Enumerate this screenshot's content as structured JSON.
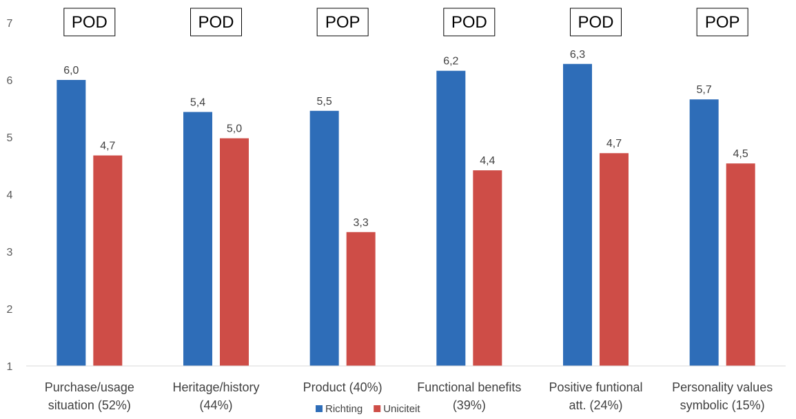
{
  "chart_data": {
    "type": "bar",
    "categories": [
      [
        "Purchase/usage",
        "situation (52%)"
      ],
      [
        "Heritage/history",
        "(44%)"
      ],
      [
        "Product (40%)"
      ],
      [
        "Functional benefits",
        "(39%)"
      ],
      [
        "Positive funtional",
        "att. (24%)"
      ],
      [
        "Personality values",
        "symbolic (15%)"
      ]
    ],
    "tags": [
      "POD",
      "POD",
      "POP",
      "POD",
      "POD",
      "POP"
    ],
    "series": [
      {
        "name": "Richting",
        "values": [
          6.0,
          5.44,
          5.46,
          6.16,
          6.28,
          5.66
        ],
        "labels": [
          "6,0",
          "5,4",
          "5,5",
          "6,2",
          "6,3",
          "5,7"
        ],
        "color": "#2E6DB8"
      },
      {
        "name": "Uniciteit",
        "values": [
          4.68,
          4.98,
          3.34,
          4.42,
          4.72,
          4.54
        ],
        "labels": [
          "4,7",
          "5,0",
          "3,3",
          "4,4",
          "4,7",
          "4,5"
        ],
        "color": "#CE4D47"
      }
    ],
    "ylim": [
      1,
      7
    ],
    "yticks": [
      1,
      2,
      3,
      4,
      5,
      6,
      7
    ],
    "grid": false,
    "legend": "bottom-center",
    "title": "",
    "xlabel": "",
    "ylabel": ""
  }
}
